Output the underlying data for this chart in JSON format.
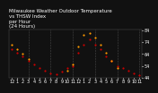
{
  "title": "Milwaukee Weather Outdoor Temperature\nvs THSW Index\nper Hour\n(24 Hours)",
  "bg_color": "#111111",
  "plot_bg_color": "#111111",
  "temp_color": "#cc0000",
  "thsw_color": "#ff9900",
  "black_color": "#000000",
  "grid_color": "#555555",
  "hours": [
    0,
    1,
    2,
    3,
    4,
    5,
    6,
    7,
    8,
    9,
    10,
    11,
    12,
    13,
    14,
    15,
    16,
    17,
    18,
    19,
    20,
    21,
    22,
    23
  ],
  "temp_values": [
    68,
    65,
    62,
    58,
    55,
    52,
    50,
    48,
    47,
    49,
    52,
    54,
    65,
    72,
    76,
    72,
    68,
    62,
    58,
    54,
    52,
    50,
    48,
    46
  ],
  "thsw_values": [
    72,
    68,
    64,
    60,
    null,
    null,
    null,
    null,
    null,
    null,
    50,
    55,
    70,
    80,
    82,
    78,
    72,
    65,
    58,
    52,
    null,
    null,
    null,
    null
  ],
  "ylim": [
    44,
    85
  ],
  "ytick_values": [
    44,
    54,
    64,
    74,
    84
  ],
  "ytick_labels": [
    "44",
    "54",
    "64",
    "74",
    "84"
  ],
  "xlim": [
    -0.5,
    23.5
  ],
  "xtick_labels": [
    "12",
    "1",
    "2",
    "3",
    "4",
    "5",
    "6",
    "7",
    "8",
    "9",
    "10",
    "11",
    "12",
    "1",
    "2",
    "3",
    "4",
    "5",
    "6",
    "7",
    "8",
    "9",
    "10",
    "11"
  ],
  "grid_hours": [
    3,
    7,
    11,
    15,
    19,
    23
  ],
  "marker_size": 2.5,
  "tick_fontsize": 3.5,
  "title_fontsize": 4.0
}
